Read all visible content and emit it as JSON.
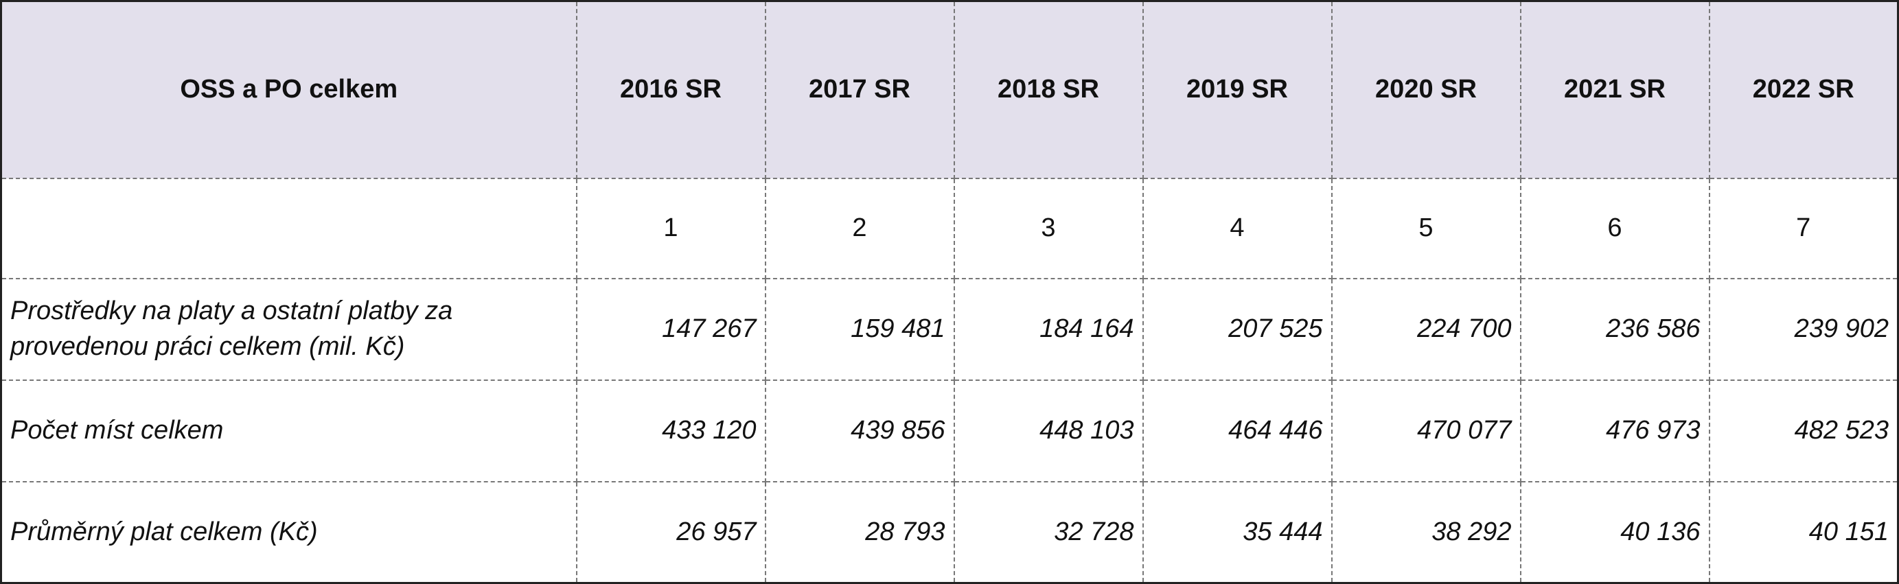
{
  "table": {
    "header": [
      "OSS a PO celkem",
      "2016 SR",
      "2017 SR",
      "2018 SR",
      "2019 SR",
      "2020 SR",
      "2021 SR",
      "2022 SR"
    ],
    "column_numbers": [
      1,
      2,
      3,
      4,
      5,
      6,
      7
    ],
    "rows": [
      {
        "label": "Prostředky na platy a ostatní platby za provedenou práci celkem (mil. Kč)",
        "values": [
          "147 267",
          "159 481",
          "184 164",
          "207 525",
          "224 700",
          "236 586",
          "239 902"
        ]
      },
      {
        "label": "Počet míst celkem",
        "values": [
          "433 120",
          "439 856",
          "448 103",
          "464 446",
          "470 077",
          "476 973",
          "482 523"
        ]
      },
      {
        "label": "Průměrný plat celkem (Kč)",
        "values": [
          "26 957",
          "28 793",
          "32 728",
          "35 444",
          "38 292",
          "40 136",
          "40 151"
        ]
      }
    ]
  }
}
